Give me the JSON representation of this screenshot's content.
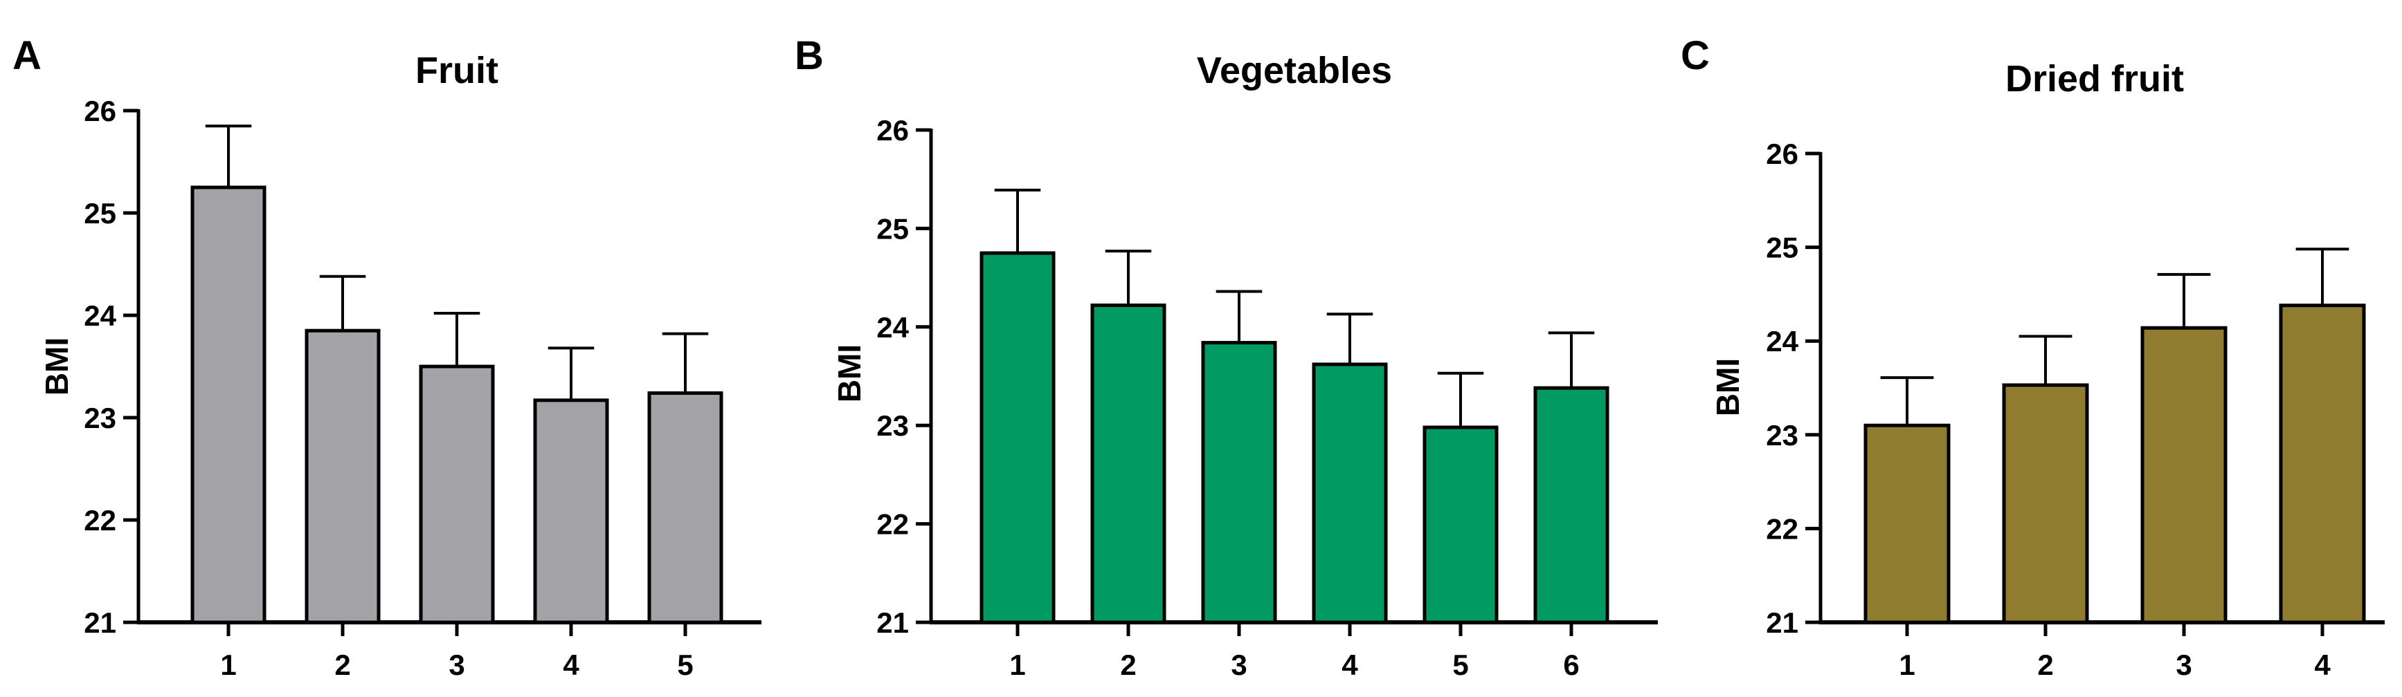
{
  "chart_data": [
    {
      "panel_label": "A",
      "type": "bar",
      "title": "Fruit",
      "xlabel": "",
      "ylabel": "BMI",
      "categories": [
        "1",
        "2",
        "3",
        "4",
        "5"
      ],
      "values": [
        25.25,
        23.85,
        23.5,
        23.17,
        23.24
      ],
      "error_upper": [
        0.6,
        0.53,
        0.52,
        0.51,
        0.58
      ],
      "ylim": [
        21,
        26
      ],
      "yticks": [
        "21",
        "22",
        "23",
        "24",
        "25",
        "26"
      ],
      "bar_color": "#a2a2a7",
      "grid": false,
      "legend": "none"
    },
    {
      "panel_label": "B",
      "type": "bar",
      "title": "Vegetables",
      "xlabel": "",
      "ylabel": "BMI",
      "categories": [
        "1",
        "2",
        "3",
        "4",
        "5",
        "6"
      ],
      "values": [
        24.75,
        24.22,
        23.84,
        23.62,
        22.98,
        23.38
      ],
      "error_upper": [
        0.64,
        0.55,
        0.52,
        0.51,
        0.55,
        0.56
      ],
      "ylim": [
        21,
        26
      ],
      "yticks": [
        "21",
        "22",
        "23",
        "24",
        "25",
        "26"
      ],
      "bar_color": "#009a62",
      "grid": false,
      "legend": "none"
    },
    {
      "panel_label": "C",
      "type": "bar",
      "title": "Dried fruit",
      "xlabel": "",
      "ylabel": "BMI",
      "categories": [
        "1",
        "2",
        "3",
        "4"
      ],
      "values": [
        23.1,
        23.53,
        24.14,
        24.38
      ],
      "error_upper": [
        0.51,
        0.52,
        0.57,
        0.6
      ],
      "ylim": [
        21,
        26
      ],
      "yticks": [
        "21",
        "22",
        "23",
        "24",
        "25",
        "26"
      ],
      "bar_color": "#8f7c2e",
      "grid": false,
      "legend": "none"
    }
  ]
}
